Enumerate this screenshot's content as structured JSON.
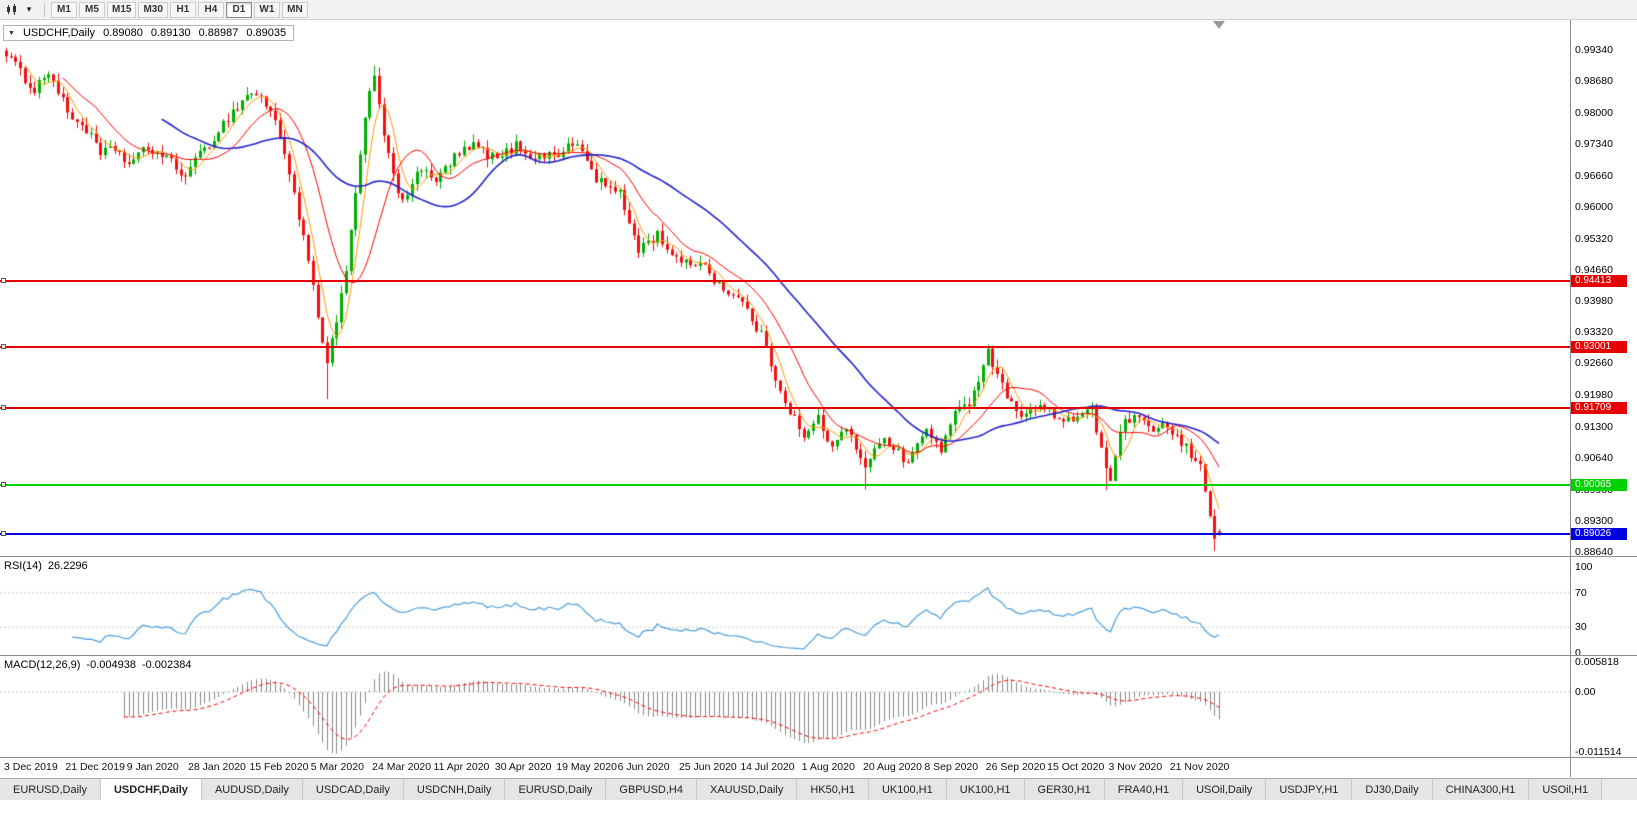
{
  "toolbar": {
    "timeframes": [
      {
        "label": "M1"
      },
      {
        "label": "M5"
      },
      {
        "label": "M15"
      },
      {
        "label": "M30"
      },
      {
        "label": "H1"
      },
      {
        "label": "H4"
      },
      {
        "label": "D1",
        "active": true
      },
      {
        "label": "W1"
      },
      {
        "label": "MN"
      }
    ]
  },
  "chart": {
    "title": {
      "symbol": "USDCHF,Daily",
      "open": "0.89080",
      "high": "0.89130",
      "low": "0.88987",
      "close": "0.89035"
    }
  },
  "price_axis": {
    "ticks": [
      "0.99340",
      "0.98680",
      "0.98000",
      "0.97340",
      "0.96660",
      "0.96000",
      "0.95320",
      "0.94660",
      "0.93980",
      "0.93320",
      "0.92660",
      "0.91980",
      "0.91300",
      "0.90640",
      "0.89960",
      "0.89300",
      "0.88640"
    ]
  },
  "hlines": [
    {
      "price": 0.94413,
      "label": "0.94413",
      "color": "#e60000"
    },
    {
      "price": 0.93001,
      "label": "0.93001",
      "color": "#e60000"
    },
    {
      "price": 0.91709,
      "label": "0.91709",
      "color": "#e60000"
    },
    {
      "price": 0.90065,
      "label": "0.90065",
      "color": "#00d200"
    },
    {
      "price": 0.89026,
      "label": "0.89026",
      "color": "#0000e0"
    }
  ],
  "rsi": {
    "name": "RSI(14)",
    "value": "26.2296",
    "ticks": [
      {
        "label": "100",
        "v": 100
      },
      {
        "label": "70",
        "v": 70
      },
      {
        "label": "30",
        "v": 30
      },
      {
        "label": "0",
        "v": 0
      }
    ]
  },
  "macd": {
    "name": "MACD(12,26,9)",
    "value1": "-0.004938",
    "value2": "-0.002384",
    "ticks": [
      {
        "label": "0.005818",
        "v": 0.005818
      },
      {
        "label": "0.00",
        "v": 0
      },
      {
        "label": "-0.011514",
        "v": -0.011514
      }
    ]
  },
  "date_axis": [
    "3 Dec 2019",
    "21 Dec 2019",
    "9 Jan 2020",
    "28 Jan 2020",
    "15 Feb 2020",
    "5 Mar 2020",
    "24 Mar 2020",
    "11 Apr 2020",
    "30 Apr 2020",
    "19 May 2020",
    "6 Jun 2020",
    "25 Jun 2020",
    "14 Jul 2020",
    "1 Aug 2020",
    "20 Aug 2020",
    "8 Sep 2020",
    "26 Sep 2020",
    "15 Oct 2020",
    "3 Nov 2020",
    "21 Nov 2020"
  ],
  "tabs": [
    {
      "label": "EURUSD,Daily"
    },
    {
      "label": "USDCHF,Daily",
      "active": true
    },
    {
      "label": "AUDUSD,Daily"
    },
    {
      "label": "USDCAD,Daily"
    },
    {
      "label": "USDCNH,Daily"
    },
    {
      "label": "EURUSD,Daily"
    },
    {
      "label": "GBPUSD,H4"
    },
    {
      "label": "XAUUSD,Daily"
    },
    {
      "label": "HK50,H1"
    },
    {
      "label": "UK100,H1"
    },
    {
      "label": "UK100,H1"
    },
    {
      "label": "GER30,H1"
    },
    {
      "label": "FRA40,H1"
    },
    {
      "label": "USOil,Daily"
    },
    {
      "label": "USDJPY,H1"
    },
    {
      "label": "DJ30,Daily"
    },
    {
      "label": "CHINA300,H1"
    },
    {
      "label": "USOil,H1"
    }
  ],
  "colors": {
    "candle_up": "#00b000",
    "candle_down": "#f01010",
    "ma_fast": "#ff9900",
    "ma_mid": "#ff0000",
    "ma_slow": "#2323cc",
    "rsi_line": "#4a9ede",
    "macd_hist": "#8a8a8a",
    "macd_signal": "#ff0000"
  },
  "chart_data": {
    "type": "candlestick",
    "title": "USDCHF,Daily",
    "symbol": "USDCHF",
    "timeframe": "Daily",
    "ohlc_current": {
      "open": 0.8908,
      "high": 0.8913,
      "low": 0.88987,
      "close": 0.89035
    },
    "y_axis": {
      "min": 0.884,
      "max": 0.9975
    },
    "bars_total": 258,
    "bars_per_label": 13,
    "price_path_anchors": [
      [
        0,
        0.993
      ],
      [
        3,
        0.9885
      ],
      [
        6,
        0.985
      ],
      [
        9,
        0.989
      ],
      [
        13,
        0.98
      ],
      [
        17,
        0.9765
      ],
      [
        20,
        0.971
      ],
      [
        23,
        0.9725
      ],
      [
        26,
        0.969
      ],
      [
        30,
        0.9725
      ],
      [
        34,
        0.9705
      ],
      [
        37,
        0.9668
      ],
      [
        39,
        0.9682
      ],
      [
        43,
        0.9735
      ],
      [
        47,
        0.979
      ],
      [
        51,
        0.9838
      ],
      [
        53,
        0.9842
      ],
      [
        56,
        0.9805
      ],
      [
        59,
        0.972
      ],
      [
        62,
        0.958
      ],
      [
        65,
        0.943
      ],
      [
        67,
        0.93
      ],
      [
        68,
        0.9265
      ],
      [
        70,
        0.936
      ],
      [
        72,
        0.946
      ],
      [
        74,
        0.962
      ],
      [
        76,
        0.98
      ],
      [
        78,
        0.9885
      ],
      [
        80,
        0.976
      ],
      [
        82,
        0.966
      ],
      [
        84,
        0.9605
      ],
      [
        87,
        0.968
      ],
      [
        91,
        0.9655
      ],
      [
        95,
        0.9705
      ],
      [
        99,
        0.973
      ],
      [
        104,
        0.97
      ],
      [
        108,
        0.973
      ],
      [
        112,
        0.9705
      ],
      [
        117,
        0.9715
      ],
      [
        121,
        0.9735
      ],
      [
        125,
        0.966
      ],
      [
        130,
        0.9625
      ],
      [
        134,
        0.951
      ],
      [
        138,
        0.954
      ],
      [
        143,
        0.9475
      ],
      [
        147,
        0.9485
      ],
      [
        151,
        0.9435
      ],
      [
        156,
        0.9395
      ],
      [
        160,
        0.9325
      ],
      [
        164,
        0.921
      ],
      [
        169,
        0.9105
      ],
      [
        172,
        0.915
      ],
      [
        175,
        0.9085
      ],
      [
        178,
        0.9125
      ],
      [
        182,
        0.905
      ],
      [
        185,
        0.9105
      ],
      [
        188,
        0.9085
      ],
      [
        191,
        0.9055
      ],
      [
        195,
        0.9125
      ],
      [
        198,
        0.9085
      ],
      [
        201,
        0.9155
      ],
      [
        204,
        0.9185
      ],
      [
        208,
        0.929
      ],
      [
        211,
        0.9225
      ],
      [
        214,
        0.9155
      ],
      [
        217,
        0.9175
      ],
      [
        221,
        0.9165
      ],
      [
        224,
        0.9135
      ],
      [
        227,
        0.9155
      ],
      [
        230,
        0.9172
      ],
      [
        232,
        0.908
      ],
      [
        234,
        0.9005
      ],
      [
        236,
        0.913
      ],
      [
        239,
        0.915
      ],
      [
        242,
        0.9125
      ],
      [
        245,
        0.9135
      ],
      [
        247,
        0.9115
      ],
      [
        250,
        0.9085
      ],
      [
        253,
        0.9045
      ],
      [
        255,
        0.895
      ],
      [
        256,
        0.89
      ],
      [
        257,
        0.89035
      ]
    ],
    "key_extremes": [
      {
        "bar": 68,
        "type": "low",
        "price": 0.919
      },
      {
        "bar": 78,
        "type": "high",
        "price": 0.9901
      },
      {
        "bar": 182,
        "type": "low",
        "price": 0.8997
      },
      {
        "bar": 233,
        "type": "low",
        "price": 0.8996
      },
      {
        "bar": 256,
        "type": "low",
        "price": 0.8866
      }
    ],
    "horizontal_line_prices": [
      0.94413,
      0.93001,
      0.91709,
      0.90065,
      0.89026
    ],
    "moving_averages": [
      {
        "period": 5,
        "color_key": "ma_fast"
      },
      {
        "period": 13,
        "color_key": "ma_mid"
      },
      {
        "period": 34,
        "color_key": "ma_slow"
      }
    ],
    "indicators": [
      {
        "name": "RSI",
        "params": [
          14
        ],
        "current": 26.2296,
        "range": [
          0,
          100
        ],
        "levels": [
          30,
          70
        ]
      },
      {
        "name": "MACD",
        "params": [
          12,
          26,
          9
        ],
        "current_macd": -0.004938,
        "current_signal": -0.002384,
        "axis_ticks": [
          0.005818,
          0.0,
          -0.011514
        ]
      }
    ]
  }
}
